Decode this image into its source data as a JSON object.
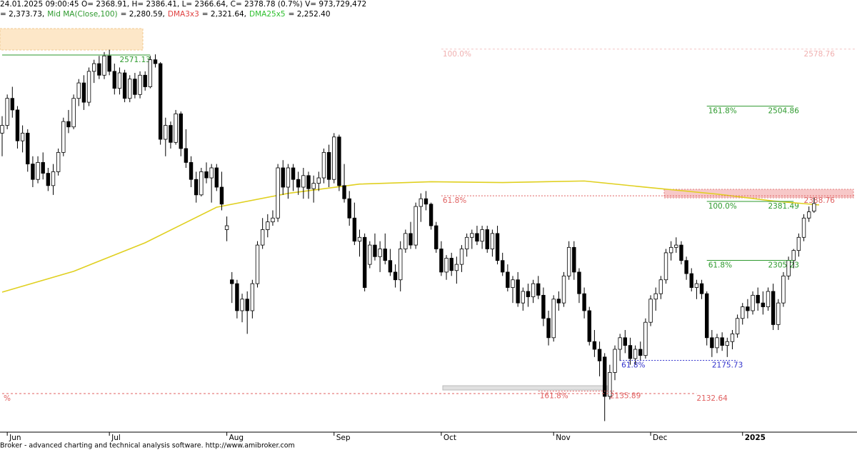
{
  "header": {
    "line1": "24.01.2025 09:00:45 O= 2368.91, H= 2386.41, L= 2366.64, C= 2378.78 (0.7%) V= 973,729,472",
    "line2": [
      {
        "text": "= 2,373.73,",
        "color": "#000000"
      },
      {
        "text": "Mid MA(Close,100)",
        "color": "#2e9a2e"
      },
      {
        "text": "= 2,280.59,",
        "color": "#000000"
      },
      {
        "text": "DMA3x3",
        "color": "#e04040"
      },
      {
        "text": "= 2,321.64,",
        "color": "#000000"
      },
      {
        "text": "DMA25x5",
        "color": "#2ec02e"
      },
      {
        "text": "= 2,252.40",
        "color": "#000000"
      }
    ]
  },
  "footer": "Broker - advanced charting and technical analysis software. http://www.amibroker.com",
  "chart_data": {
    "type": "candlestick",
    "ylim": [
      2082.7,
      2642.4
    ],
    "xlim": [
      -0.5,
      167.5
    ],
    "xticks": [
      {
        "value": 1,
        "label": "Jun"
      },
      {
        "value": 21,
        "label": "Jul"
      },
      {
        "value": 44,
        "label": "Aug"
      },
      {
        "value": 65,
        "label": "Sep"
      },
      {
        "value": 86,
        "label": "Oct"
      },
      {
        "value": 108,
        "label": "Nov"
      },
      {
        "value": 127,
        "label": "Dec"
      },
      {
        "value": 145,
        "label": "2025"
      }
    ],
    "up_color": "#ffffff",
    "down_color": "#000000",
    "candles": [
      [
        2470,
        2492,
        2440,
        2480
      ],
      [
        2480,
        2520,
        2475,
        2515
      ],
      [
        2515,
        2530,
        2490,
        2500
      ],
      [
        2500,
        2505,
        2450,
        2460
      ],
      [
        2460,
        2480,
        2445,
        2470
      ],
      [
        2470,
        2475,
        2420,
        2430
      ],
      [
        2430,
        2440,
        2400,
        2410
      ],
      [
        2410,
        2440,
        2405,
        2432
      ],
      [
        2432,
        2445,
        2410,
        2418
      ],
      [
        2418,
        2425,
        2395,
        2402
      ],
      [
        2402,
        2430,
        2390,
        2420
      ],
      [
        2420,
        2450,
        2415,
        2445
      ],
      [
        2445,
        2490,
        2440,
        2485
      ],
      [
        2485,
        2500,
        2470,
        2478
      ],
      [
        2478,
        2520,
        2475,
        2515
      ],
      [
        2515,
        2540,
        2505,
        2535
      ],
      [
        2535,
        2545,
        2500,
        2510
      ],
      [
        2510,
        2555,
        2505,
        2550
      ],
      [
        2550,
        2565,
        2535,
        2560
      ],
      [
        2560,
        2570,
        2540,
        2545
      ],
      [
        2545,
        2575,
        2540,
        2570
      ],
      [
        2570,
        2578,
        2545,
        2550
      ],
      [
        2550,
        2560,
        2520,
        2528
      ],
      [
        2528,
        2555,
        2520,
        2548
      ],
      [
        2548,
        2552,
        2510,
        2515
      ],
      [
        2515,
        2545,
        2510,
        2540
      ],
      [
        2540,
        2548,
        2515,
        2520
      ],
      [
        2520,
        2550,
        2515,
        2545
      ],
      [
        2545,
        2550,
        2525,
        2530
      ],
      [
        2530,
        2570,
        2528,
        2565
      ],
      [
        2565,
        2572,
        2555,
        2560
      ],
      [
        2560,
        2562,
        2455,
        2462
      ],
      [
        2462,
        2490,
        2440,
        2480
      ],
      [
        2480,
        2485,
        2450,
        2458
      ],
      [
        2458,
        2500,
        2455,
        2495
      ],
      [
        2495,
        2498,
        2440,
        2450
      ],
      [
        2450,
        2475,
        2425,
        2432
      ],
      [
        2432,
        2440,
        2400,
        2410
      ],
      [
        2410,
        2420,
        2380,
        2390
      ],
      [
        2390,
        2425,
        2388,
        2420
      ],
      [
        2420,
        2432,
        2405,
        2412
      ],
      [
        2412,
        2430,
        2380,
        2425
      ],
      [
        2425,
        2430,
        2395,
        2400
      ],
      [
        2400,
        2420,
        2370,
        2378
      ],
      [
        2345,
        2362,
        2330,
        2350
      ],
      [
        2280,
        2290,
        2250,
        2275
      ],
      [
        2275,
        2280,
        2230,
        2240
      ],
      [
        2240,
        2262,
        2225,
        2255
      ],
      [
        2255,
        2265,
        2210,
        2240
      ],
      [
        2240,
        2280,
        2230,
        2275
      ],
      [
        2275,
        2330,
        2270,
        2325
      ],
      [
        2325,
        2360,
        2320,
        2345
      ],
      [
        2345,
        2365,
        2335,
        2355
      ],
      [
        2355,
        2370,
        2350,
        2360
      ],
      [
        2360,
        2430,
        2355,
        2425
      ],
      [
        2425,
        2435,
        2390,
        2400
      ],
      [
        2400,
        2430,
        2385,
        2425
      ],
      [
        2425,
        2430,
        2395,
        2410
      ],
      [
        2410,
        2420,
        2390,
        2400
      ],
      [
        2400,
        2425,
        2385,
        2415
      ],
      [
        2415,
        2420,
        2385,
        2398
      ],
      [
        2398,
        2415,
        2380,
        2405
      ],
      [
        2405,
        2420,
        2395,
        2412
      ],
      [
        2412,
        2450,
        2405,
        2445
      ],
      [
        2445,
        2455,
        2400,
        2410
      ],
      [
        2410,
        2470,
        2405,
        2465
      ],
      [
        2465,
        2468,
        2395,
        2402
      ],
      [
        2402,
        2430,
        2380,
        2385
      ],
      [
        2385,
        2395,
        2350,
        2360
      ],
      [
        2360,
        2380,
        2325,
        2330
      ],
      [
        2330,
        2345,
        2310,
        2335
      ],
      [
        2335,
        2340,
        2265,
        2270
      ],
      [
        2300,
        2330,
        2295,
        2325
      ],
      [
        2325,
        2340,
        2305,
        2310
      ],
      [
        2310,
        2330,
        2290,
        2320
      ],
      [
        2320,
        2340,
        2300,
        2305
      ],
      [
        2305,
        2320,
        2285,
        2290
      ],
      [
        2290,
        2300,
        2270,
        2280
      ],
      [
        2280,
        2330,
        2265,
        2320
      ],
      [
        2320,
        2345,
        2315,
        2340
      ],
      [
        2340,
        2355,
        2320,
        2325
      ],
      [
        2325,
        2380,
        2320,
        2375
      ],
      [
        2375,
        2392,
        2355,
        2385
      ],
      [
        2385,
        2395,
        2370,
        2378
      ],
      [
        2378,
        2380,
        2345,
        2350
      ],
      [
        2350,
        2355,
        2315,
        2320
      ],
      [
        2320,
        2330,
        2285,
        2290
      ],
      [
        2290,
        2312,
        2280,
        2308
      ],
      [
        2308,
        2315,
        2285,
        2292
      ],
      [
        2292,
        2310,
        2275,
        2300
      ],
      [
        2300,
        2325,
        2290,
        2320
      ],
      [
        2320,
        2340,
        2310,
        2335
      ],
      [
        2335,
        2345,
        2320,
        2340
      ],
      [
        2340,
        2350,
        2325,
        2330
      ],
      [
        2330,
        2350,
        2320,
        2345
      ],
      [
        2345,
        2350,
        2315,
        2320
      ],
      [
        2320,
        2345,
        2310,
        2340
      ],
      [
        2340,
        2350,
        2300,
        2305
      ],
      [
        2305,
        2315,
        2285,
        2290
      ],
      [
        2290,
        2300,
        2265,
        2270
      ],
      [
        2270,
        2285,
        2250,
        2280
      ],
      [
        2280,
        2290,
        2245,
        2250
      ],
      [
        2250,
        2270,
        2240,
        2265
      ],
      [
        2265,
        2275,
        2245,
        2258
      ],
      [
        2258,
        2280,
        2250,
        2275
      ],
      [
        2275,
        2285,
        2255,
        2260
      ],
      [
        2260,
        2270,
        2220,
        2230
      ],
      [
        2230,
        2240,
        2195,
        2205
      ],
      [
        2205,
        2260,
        2200,
        2255
      ],
      [
        2255,
        2265,
        2240,
        2250
      ],
      [
        2250,
        2290,
        2245,
        2285
      ],
      [
        2285,
        2330,
        2280,
        2322
      ],
      [
        2322,
        2330,
        2280,
        2290
      ],
      [
        2290,
        2295,
        2250,
        2262
      ],
      [
        2262,
        2270,
        2230,
        2240
      ],
      [
        2240,
        2245,
        2195,
        2200
      ],
      [
        2200,
        2215,
        2180,
        2190
      ],
      [
        2190,
        2200,
        2155,
        2175
      ],
      [
        2180,
        2185,
        2097,
        2129
      ],
      [
        2129,
        2170,
        2125,
        2160
      ],
      [
        2160,
        2195,
        2150,
        2190
      ],
      [
        2190,
        2210,
        2175,
        2205
      ],
      [
        2205,
        2215,
        2185,
        2195
      ],
      [
        2195,
        2205,
        2170,
        2178
      ],
      [
        2178,
        2195,
        2170,
        2190
      ],
      [
        2190,
        2200,
        2175,
        2182
      ],
      [
        2182,
        2230,
        2178,
        2225
      ],
      [
        2225,
        2260,
        2220,
        2255
      ],
      [
        2255,
        2270,
        2240,
        2262
      ],
      [
        2262,
        2285,
        2255,
        2280
      ],
      [
        2280,
        2320,
        2275,
        2315
      ],
      [
        2315,
        2330,
        2305,
        2322
      ],
      [
        2322,
        2335,
        2315,
        2325
      ],
      [
        2325,
        2330,
        2300,
        2305
      ],
      [
        2305,
        2310,
        2280,
        2288
      ],
      [
        2288,
        2295,
        2265,
        2270
      ],
      [
        2270,
        2280,
        2255,
        2275
      ],
      [
        2275,
        2280,
        2255,
        2262
      ],
      [
        2262,
        2265,
        2195,
        2205
      ],
      [
        2205,
        2215,
        2180,
        2192
      ],
      [
        2192,
        2210,
        2185,
        2205
      ],
      [
        2205,
        2212,
        2188,
        2195
      ],
      [
        2195,
        2205,
        2180,
        2200
      ],
      [
        2200,
        2215,
        2190,
        2210
      ],
      [
        2210,
        2235,
        2205,
        2230
      ],
      [
        2230,
        2250,
        2222,
        2245
      ],
      [
        2245,
        2255,
        2230,
        2240
      ],
      [
        2240,
        2265,
        2235,
        2260
      ],
      [
        2260,
        2270,
        2240,
        2250
      ],
      [
        2250,
        2265,
        2235,
        2245
      ],
      [
        2245,
        2270,
        2240,
        2265
      ],
      [
        2265,
        2275,
        2215,
        2222
      ],
      [
        2222,
        2255,
        2215,
        2250
      ],
      [
        2250,
        2290,
        2245,
        2285
      ],
      [
        2285,
        2310,
        2280,
        2305
      ],
      [
        2305,
        2320,
        2295,
        2318
      ],
      [
        2318,
        2340,
        2310,
        2335
      ],
      [
        2335,
        2365,
        2330,
        2360
      ],
      [
        2360,
        2375,
        2355,
        2368
      ],
      [
        2368.91,
        2386.41,
        2366.64,
        2378.78
      ]
    ],
    "ma": {
      "color": "#e0d020",
      "x": [
        0,
        14,
        28,
        42,
        56,
        70,
        84,
        98,
        114,
        126,
        140,
        151,
        160
      ],
      "values": [
        2264,
        2291,
        2328,
        2374,
        2392,
        2404,
        2407,
        2406,
        2408,
        2400,
        2391,
        2382,
        2377
      ]
    },
    "levels": [
      {
        "price": 2571.13,
        "color": "#2e9a2e",
        "from": 0,
        "to": 29,
        "label_at": 23,
        "dash": "none"
      },
      {
        "pct": "100.0%",
        "price": 2578.76,
        "color": "#f2c4c4",
        "from": 86,
        "to": 167,
        "label_at": 157,
        "dash": "3 3"
      },
      {
        "pct": "161.8%",
        "price": 2504.86,
        "color": "#2e9a2e",
        "from": 138,
        "to": 155,
        "label_at": 150,
        "dash": "none"
      },
      {
        "pct": "61.8%",
        "price": 2388.76,
        "color": "#e06060",
        "from": 86,
        "to": 167,
        "label_at": 157,
        "dash": "2 2"
      },
      {
        "pct": "100.0%",
        "price": 2381.49,
        "color": "#2e9a2e",
        "from": 138,
        "to": 155,
        "label_at": 150,
        "dash": "none"
      },
      {
        "pct": "61.8%",
        "price": 2305.23,
        "color": "#2e9a2e",
        "from": 138,
        "to": 155,
        "label_at": 150,
        "dash": "none"
      },
      {
        "pct": "61.8%",
        "price": 2175.73,
        "color": "#3333cc",
        "from": 121,
        "to": 144,
        "label_at": 139,
        "dash": "2 2"
      },
      {
        "pct": "161.8%",
        "price": 2135.89,
        "color": "#e06060",
        "from": 105,
        "to": 120,
        "label_at": 119,
        "dash": "2 2"
      },
      {
        "pct": "%",
        "price": 2132.64,
        "color": "#e06060",
        "from": 0,
        "to": 136,
        "label_at": 136,
        "dash": "3 3"
      }
    ]
  }
}
